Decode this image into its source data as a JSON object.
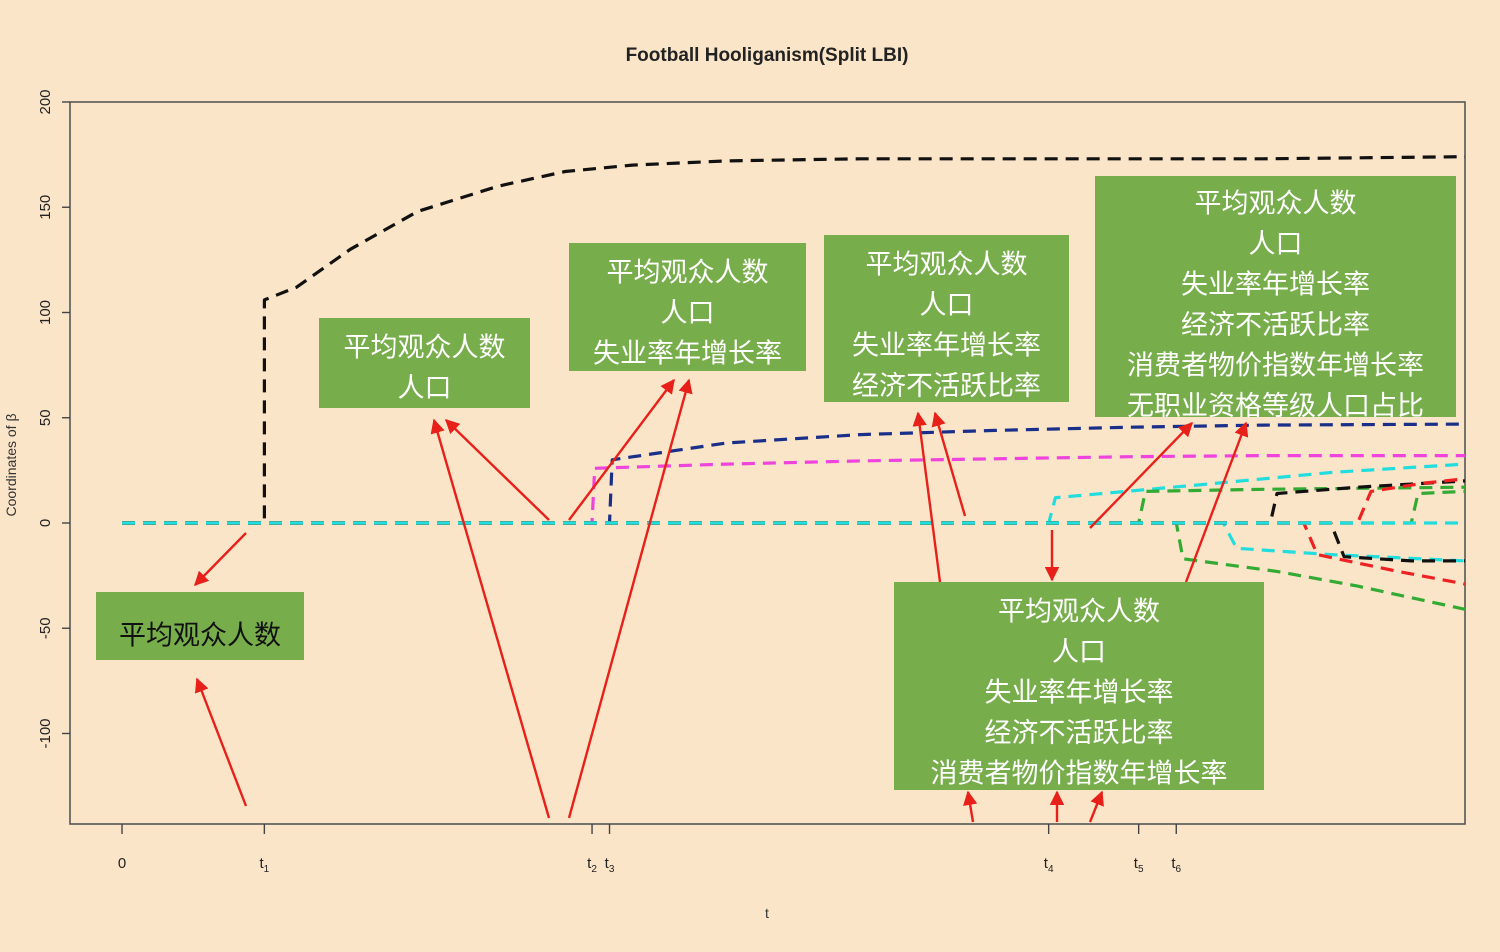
{
  "chart_data": {
    "type": "line",
    "title": "Football Hooliganism(Split LBI)",
    "xlabel": "t",
    "ylabel": "Coordinates of β",
    "ylim": [
      -143,
      200
    ],
    "y_ticks": [
      200,
      150,
      100,
      50,
      0,
      -50,
      -100
    ],
    "y_tick_labels": [
      "200",
      "150",
      "100",
      "50",
      "0",
      "-50",
      "-100"
    ],
    "xlim": [
      -0.09,
      1.0
    ],
    "x_ticks": [
      {
        "x": 0.0,
        "base": "0",
        "sub": ""
      },
      {
        "x": 0.106,
        "base": "t",
        "sub": "1"
      },
      {
        "x": 0.35,
        "base": "t",
        "sub": "2"
      },
      {
        "x": 0.363,
        "base": "t",
        "sub": "3"
      },
      {
        "x": 0.69,
        "base": "t",
        "sub": "4"
      },
      {
        "x": 0.757,
        "base": "t",
        "sub": "5"
      },
      {
        "x": 0.785,
        "base": "t",
        "sub": "6"
      }
    ],
    "grid": false,
    "series": [
      {
        "color": "#111111",
        "x": [
          0,
          0.106,
          0.106,
          0.13,
          0.17,
          0.22,
          0.28,
          0.33,
          0.38,
          0.45,
          0.55,
          0.7,
          0.85,
          1.0
        ],
        "y": [
          0,
          0,
          106,
          112,
          130,
          148,
          160,
          167,
          170,
          172,
          173,
          173,
          173,
          174
        ]
      },
      {
        "color": "#1a2f8a",
        "x": [
          0,
          0.363,
          0.365,
          0.45,
          0.55,
          0.65,
          0.75,
          0.85,
          1.0
        ],
        "y": [
          0,
          0,
          30,
          38,
          42,
          44,
          45.5,
          46.5,
          47
        ]
      },
      {
        "color": "#ee44dd",
        "x": [
          0,
          0.35,
          0.352,
          0.45,
          0.55,
          0.65,
          0.75,
          0.85,
          1.0
        ],
        "y": [
          0,
          0,
          26,
          28,
          29.5,
          30.5,
          31.5,
          32,
          32
        ]
      },
      {
        "color": "#22dddd",
        "x": [
          0,
          0.69,
          0.695,
          0.8,
          0.9,
          1.0
        ],
        "y": [
          0,
          0,
          12,
          18,
          24,
          28
        ]
      },
      {
        "color": "#33aa33",
        "x": [
          0,
          0.757,
          0.762,
          0.85,
          1.0
        ],
        "y": [
          0,
          0,
          15,
          16,
          17
        ]
      },
      {
        "color": "#33aa33",
        "x": [
          0,
          0.785,
          0.79,
          0.86,
          0.92,
          1.0
        ],
        "y": [
          0,
          0,
          -17,
          -23,
          -30,
          -41
        ]
      },
      {
        "color": "#22dddd",
        "x": [
          0,
          0.82,
          0.83,
          0.9,
          1.0
        ],
        "y": [
          0,
          0,
          -12,
          -15,
          -18
        ]
      },
      {
        "color": "#111111",
        "x": [
          0,
          0.855,
          0.86,
          0.92,
          1.0
        ],
        "y": [
          0,
          0,
          14,
          17,
          20
        ]
      },
      {
        "color": "#111111",
        "x": [
          0,
          0.9,
          0.91,
          0.96,
          1.0
        ],
        "y": [
          0,
          0,
          -16,
          -18,
          -18
        ]
      },
      {
        "color": "#ee2222",
        "x": [
          0,
          0.88,
          0.89,
          0.95,
          1.0
        ],
        "y": [
          0,
          0,
          -15,
          -23,
          -29
        ]
      },
      {
        "color": "#ee2222",
        "x": [
          0,
          0.92,
          0.93,
          0.97,
          1.0
        ],
        "y": [
          0,
          0,
          15,
          19,
          21
        ]
      },
      {
        "color": "#33aa33",
        "x": [
          0,
          0.96,
          0.965,
          1.0
        ],
        "y": [
          0,
          0,
          14,
          15
        ]
      },
      {
        "color": "#22dddd",
        "x": [
          0,
          1.0
        ],
        "y": [
          0,
          0
        ]
      }
    ]
  },
  "annotations": [
    {
      "lines": [
        "平均观众人数"
      ]
    },
    {
      "lines": [
        "平均观众人数",
        "人口"
      ]
    },
    {
      "lines": [
        "平均观众人数",
        "人口",
        "失业率年增长率"
      ]
    },
    {
      "lines": [
        "平均观众人数",
        "人口",
        "失业率年增长率",
        "经济不活跃比率"
      ]
    },
    {
      "lines": [
        "平均观众人数",
        "人口",
        "失业率年增长率",
        "经济不活跃比率",
        "消费者物价指数年增长率",
        "无职业资格等级人口占比"
      ]
    },
    {
      "lines": [
        "平均观众人数",
        "人口",
        "失业率年增长率",
        "经济不活跃比率",
        "消费者物价指数年增长率"
      ]
    }
  ],
  "colors": {
    "background": "#fae5c8",
    "note_box": "#78ad4c",
    "arrow": "#e8201a"
  }
}
